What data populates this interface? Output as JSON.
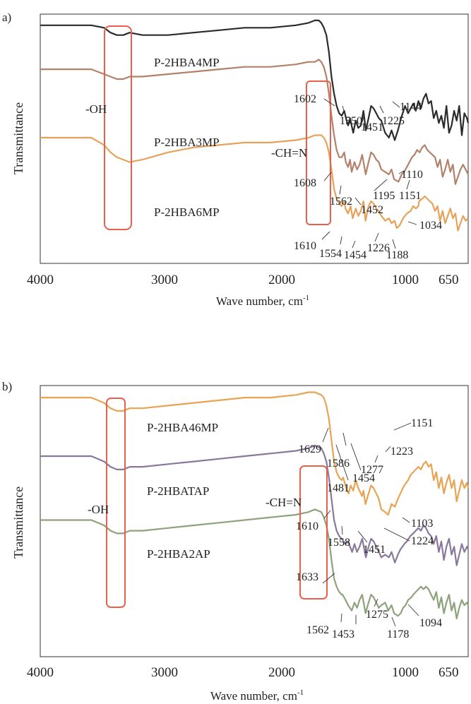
{
  "chart_data": [
    {
      "panel_label": "a)",
      "type": "line",
      "xlabel": "Wave number, cm-1",
      "xlabel_main": "Wave number, cm",
      "xlabel_sup": "-1",
      "ylabel": "Transmittance",
      "xlim": [
        4000,
        650
      ],
      "x_reversed": true,
      "xticks": [
        "4000",
        "3000",
        "2000",
        "1000",
        "650"
      ],
      "grid": false,
      "series": [
        {
          "name": "P-2HBA4MP",
          "color": "#2b2b2b",
          "x": [
            4000,
            3800,
            3600,
            3500,
            3450,
            3400,
            3350,
            3300,
            3200,
            3000,
            2800,
            2600,
            2400,
            2200,
            2000,
            1900,
            1850,
            1820,
            1800,
            1780,
            1760,
            1740,
            1720,
            1700,
            1680,
            1660,
            1640,
            1620,
            1602,
            1590,
            1575,
            1550,
            1530,
            1510,
            1490,
            1470,
            1451,
            1430,
            1410,
            1390,
            1370,
            1350,
            1330,
            1300,
            1270,
            1250,
            1225,
            1200,
            1175,
            1144,
            1120,
            1100,
            1080,
            1060,
            1040,
            1020,
            1000,
            980,
            960,
            940,
            920,
            900,
            880,
            860,
            840,
            820,
            800,
            780,
            760,
            740,
            720,
            700,
            680,
            660,
            650
          ],
          "y": [
            96,
            96,
            96,
            95,
            93,
            92,
            92,
            93,
            92,
            92,
            93,
            94,
            95,
            95,
            96,
            97,
            98,
            98,
            97,
            95,
            92,
            85,
            75,
            68,
            63,
            60,
            59,
            61,
            57,
            55,
            58,
            52,
            57,
            54,
            55,
            61,
            53,
            58,
            63,
            62,
            60,
            58,
            57,
            52,
            50,
            53,
            49,
            53,
            58,
            63,
            60,
            62,
            64,
            61,
            65,
            62,
            66,
            68,
            64,
            65,
            58,
            61,
            56,
            59,
            54,
            63,
            52,
            55,
            61,
            57,
            63,
            51,
            60,
            58,
            56
          ]
        },
        {
          "name": "P-2HBA3MP",
          "color": "#b3816b",
          "x": [
            4000,
            3800,
            3600,
            3500,
            3450,
            3400,
            3350,
            3300,
            3200,
            3000,
            2800,
            2600,
            2400,
            2200,
            2000,
            1900,
            1850,
            1820,
            1800,
            1780,
            1760,
            1740,
            1720,
            1700,
            1680,
            1660,
            1640,
            1620,
            1608,
            1590,
            1575,
            1562,
            1540,
            1520,
            1500,
            1480,
            1452,
            1430,
            1410,
            1390,
            1370,
            1350,
            1330,
            1300,
            1270,
            1250,
            1230,
            1195,
            1170,
            1151,
            1130,
            1110,
            1090,
            1070,
            1050,
            1030,
            1010,
            990,
            970,
            950,
            930,
            910,
            890,
            870,
            850,
            830,
            810,
            790,
            770,
            750,
            730,
            710,
            690,
            670,
            650
          ],
          "y": [
            78,
            78,
            78,
            76,
            75,
            74,
            74,
            75,
            75,
            76,
            77,
            78,
            79,
            79,
            80,
            81,
            81,
            82,
            81,
            79,
            75,
            68,
            59,
            51,
            45,
            42,
            42,
            44,
            40,
            38,
            41,
            36,
            40,
            37,
            39,
            43,
            35,
            40,
            44,
            43,
            41,
            40,
            37,
            36,
            35,
            37,
            33,
            32,
            35,
            36,
            38,
            40,
            42,
            43,
            45,
            44,
            46,
            47,
            45,
            44,
            43,
            42,
            38,
            41,
            34,
            37,
            41,
            36,
            39,
            31,
            34,
            37,
            39,
            37,
            35
          ]
        },
        {
          "name": "P-2HBA6MP",
          "color": "#e6a25a",
          "x": [
            4000,
            3800,
            3600,
            3500,
            3450,
            3400,
            3350,
            3300,
            3200,
            3000,
            2800,
            2600,
            2400,
            2200,
            2000,
            1900,
            1850,
            1800,
            1780,
            1760,
            1740,
            1720,
            1700,
            1680,
            1660,
            1640,
            1620,
            1610,
            1590,
            1570,
            1554,
            1530,
            1510,
            1490,
            1470,
            1454,
            1430,
            1410,
            1390,
            1370,
            1350,
            1330,
            1300,
            1270,
            1250,
            1226,
            1210,
            1188,
            1160,
            1130,
            1100,
            1080,
            1060,
            1040,
            1034,
            1010,
            990,
            970,
            950,
            930,
            910,
            890,
            870,
            850,
            830,
            810,
            790,
            770,
            750,
            730,
            710,
            690,
            670,
            650
          ],
          "y": [
            50,
            50,
            50,
            47,
            44,
            42,
            41,
            40,
            41,
            44,
            46,
            47,
            48,
            48,
            49,
            50,
            51,
            51,
            50,
            48,
            44,
            37,
            29,
            25,
            23,
            22,
            24,
            21,
            19,
            22,
            17,
            21,
            18,
            20,
            24,
            16,
            22,
            24,
            23,
            21,
            20,
            18,
            16,
            17,
            15,
            16,
            13,
            14,
            17,
            19,
            20,
            22,
            21,
            22,
            24,
            25,
            26,
            25,
            24,
            23,
            20,
            22,
            16,
            20,
            15,
            18,
            21,
            17,
            19,
            12,
            15,
            18,
            16,
            17
          ]
        }
      ],
      "annotations": {
        "series_labels": [
          "P-2HBA4MP",
          "P-2HBA3MP",
          "P-2HBA6MP"
        ],
        "group_labels": [
          "-OH",
          "-CH=N"
        ],
        "peaks": [
          "1602",
          "1550",
          "1451",
          "1225",
          "1144",
          "1608",
          "1562",
          "1452",
          "1195",
          "1151",
          "1110",
          "1610",
          "1554",
          "1454",
          "1226",
          "1188",
          "1034"
        ]
      }
    },
    {
      "panel_label": "b)",
      "type": "line",
      "xlabel": "Wave number, cm-1",
      "xlabel_main": "Wave number, cm",
      "xlabel_sup": "-1",
      "ylabel": "Transmittance",
      "xlim": [
        4000,
        650
      ],
      "x_reversed": true,
      "xticks": [
        "4000",
        "3000",
        "2000",
        "1000",
        "650"
      ],
      "grid": false,
      "series": [
        {
          "name": "P-2HBA46MP",
          "color": "#e8a354",
          "x": [
            4000,
            3800,
            3600,
            3500,
            3450,
            3400,
            3350,
            3300,
            3200,
            3000,
            2800,
            2600,
            2400,
            2200,
            2000,
            1900,
            1850,
            1800,
            1780,
            1760,
            1740,
            1720,
            1700,
            1680,
            1660,
            1640,
            1629,
            1610,
            1600,
            1586,
            1570,
            1550,
            1530,
            1510,
            1481,
            1470,
            1454,
            1430,
            1410,
            1390,
            1370,
            1350,
            1330,
            1300,
            1277,
            1250,
            1223,
            1200,
            1180,
            1151,
            1120,
            1100,
            1080,
            1060,
            1040,
            1020,
            1000,
            980,
            960,
            940,
            920,
            900,
            880,
            860,
            840,
            820,
            800,
            780,
            760,
            740,
            720,
            700,
            680,
            660,
            650
          ],
          "y": [
            96,
            96,
            96,
            94,
            92,
            91,
            91,
            92,
            92,
            93,
            94,
            95,
            96,
            96,
            97,
            98,
            98,
            97,
            96,
            93,
            88,
            80,
            72,
            68,
            66,
            65,
            66,
            63,
            61,
            60,
            63,
            61,
            65,
            62,
            59,
            61,
            56,
            60,
            63,
            62,
            60,
            58,
            54,
            53,
            52,
            56,
            55,
            58,
            60,
            63,
            65,
            67,
            68,
            69,
            70,
            69,
            71,
            72,
            70,
            71,
            65,
            68,
            62,
            66,
            60,
            64,
            67,
            62,
            65,
            57,
            61,
            65,
            62,
            64,
            62
          ]
        },
        {
          "name": "P-2HBATAP",
          "color": "#8a779c",
          "x": [
            4000,
            3800,
            3600,
            3500,
            3450,
            3400,
            3350,
            3300,
            3200,
            3000,
            2800,
            2600,
            2400,
            2200,
            2000,
            1900,
            1850,
            1800,
            1780,
            1760,
            1740,
            1720,
            1700,
            1680,
            1660,
            1640,
            1610,
            1590,
            1575,
            1558,
            1540,
            1520,
            1500,
            1480,
            1451,
            1430,
            1410,
            1390,
            1370,
            1350,
            1330,
            1300,
            1270,
            1250,
            1224,
            1200,
            1180,
            1150,
            1130,
            1103,
            1080,
            1060,
            1040,
            1020,
            1000,
            980,
            960,
            940,
            920,
            900,
            880,
            860,
            840,
            820,
            800,
            780,
            760,
            740,
            720,
            700,
            680,
            660,
            650
          ],
          "y": [
            74,
            74,
            74,
            72,
            70,
            69,
            69,
            70,
            70,
            71,
            72,
            73,
            74,
            75,
            76,
            77,
            78,
            77,
            75,
            72,
            66,
            58,
            50,
            46,
            44,
            43,
            41,
            42,
            40,
            38,
            41,
            38,
            40,
            43,
            36,
            40,
            43,
            42,
            40,
            38,
            36,
            37,
            36,
            38,
            34,
            37,
            39,
            41,
            42,
            44,
            45,
            46,
            47,
            46,
            48,
            47,
            45,
            44,
            41,
            44,
            38,
            42,
            35,
            40,
            43,
            37,
            40,
            33,
            37,
            41,
            38,
            40,
            39
          ]
        },
        {
          "name": "P-2HBA2AP",
          "color": "#8ea27c",
          "x": [
            4000,
            3800,
            3600,
            3500,
            3450,
            3400,
            3350,
            3300,
            3200,
            3000,
            2800,
            2600,
            2400,
            2200,
            2000,
            1900,
            1850,
            1800,
            1780,
            1760,
            1740,
            1720,
            1700,
            1680,
            1660,
            1640,
            1633,
            1610,
            1590,
            1562,
            1540,
            1520,
            1500,
            1480,
            1453,
            1430,
            1410,
            1390,
            1370,
            1350,
            1330,
            1300,
            1275,
            1250,
            1230,
            1200,
            1178,
            1160,
            1140,
            1120,
            1094,
            1080,
            1060,
            1040,
            1020,
            1000,
            980,
            960,
            940,
            920,
            900,
            880,
            860,
            840,
            820,
            800,
            780,
            760,
            740,
            720,
            700,
            680,
            660,
            650
          ],
          "y": [
            50,
            50,
            50,
            48,
            46,
            45,
            45,
            46,
            46,
            47,
            48,
            49,
            50,
            51,
            52,
            53,
            54,
            53,
            51,
            48,
            43,
            35,
            28,
            25,
            23,
            22,
            22,
            20,
            18,
            16,
            19,
            17,
            20,
            22,
            15,
            19,
            22,
            21,
            19,
            17,
            18,
            19,
            16,
            18,
            15,
            14,
            15,
            17,
            18,
            20,
            21,
            22,
            23,
            24,
            25,
            24,
            25,
            24,
            22,
            20,
            23,
            17,
            21,
            15,
            19,
            22,
            16,
            19,
            13,
            17,
            20,
            18,
            19,
            18
          ]
        }
      ],
      "annotations": {
        "series_labels": [
          "P-2HBA46MP",
          "P-2HBATAP",
          "P-2HBA2AP"
        ],
        "group_labels": [
          "-OH",
          "-CH=N"
        ],
        "peaks": [
          "1629",
          "1586",
          "1481",
          "1454",
          "1277",
          "1223",
          "1151",
          "1610",
          "1558",
          "1451",
          "1224",
          "1103",
          "1633",
          "1562",
          "1453",
          "1275",
          "1178",
          "1094"
        ]
      }
    }
  ]
}
